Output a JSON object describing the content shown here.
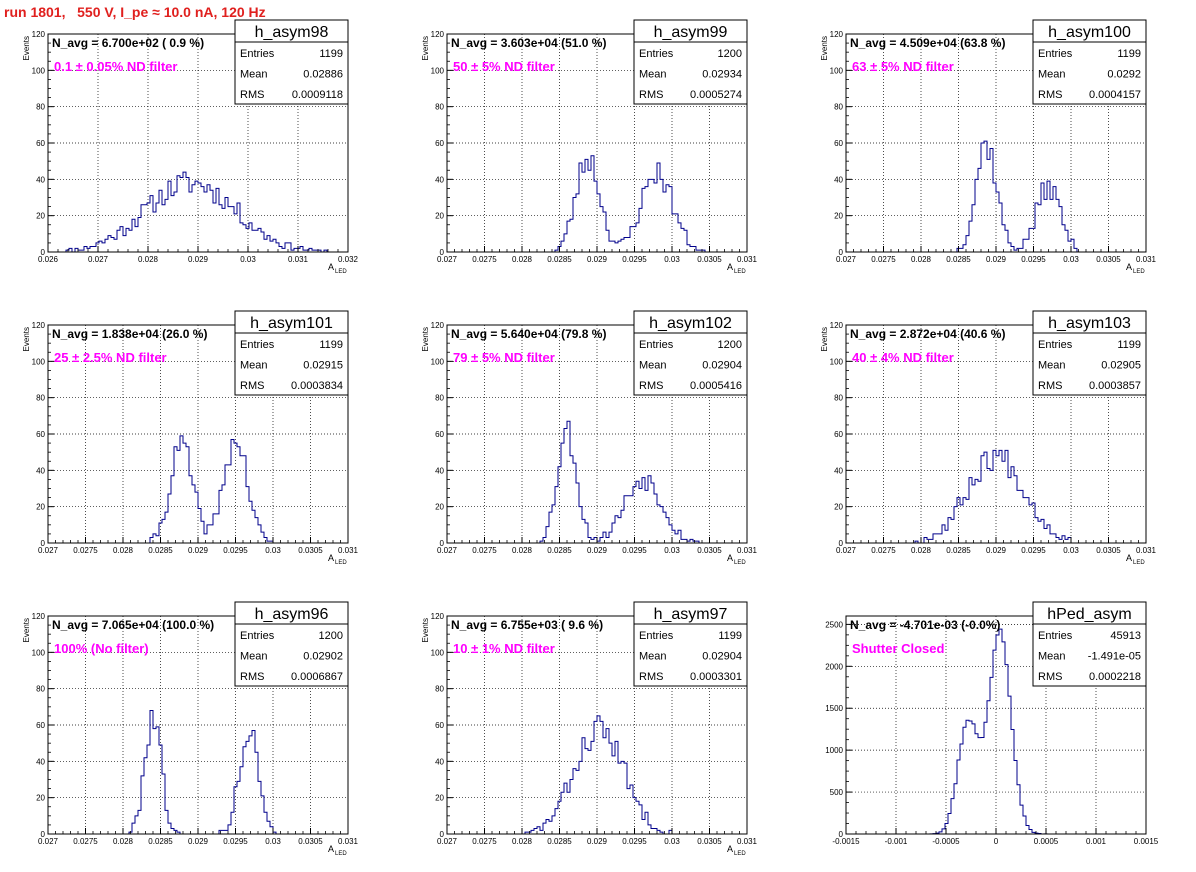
{
  "header": {
    "title": "run 1801,   550 V, I_pe ≈ 10.0 nA, 120 Hz"
  },
  "colors": {
    "histogram": "#00008b",
    "title_text": "#e0201e",
    "annotation": "#ff00ff",
    "grid": "#000000"
  },
  "chart_data": [
    {
      "type": "bar",
      "name": "h_asym98",
      "navg": "N_avg = 6.700e+02 ( 0.9 %)",
      "filter": "0.1 ± 0.05% ND filter",
      "stats": [
        [
          "Entries",
          "1199"
        ],
        [
          "Mean",
          "0.02886"
        ],
        [
          "RMS",
          "0.0009118"
        ]
      ],
      "xlim": [
        0.026,
        0.032
      ],
      "ylim": [
        0,
        120
      ],
      "xticks": [
        0.026,
        0.027,
        0.028,
        0.029,
        0.03,
        0.031,
        0.032
      ],
      "xticklabels": [
        "0.026",
        "0.027",
        "0.028",
        "0.029",
        "0.03",
        "0.031",
        "0.032"
      ],
      "yticks": [
        0,
        20,
        40,
        60,
        80,
        100,
        120
      ],
      "yticklabels": [
        "0",
        "20",
        "40",
        "60",
        "80",
        "100",
        "120"
      ],
      "xlabel": "A",
      "xlabel_sub": "LED",
      "ylabel": "Events",
      "peaks": [
        {
          "mu": 0.02885,
          "sigma": 0.0009,
          "amp": 38
        }
      ],
      "seed": 11
    },
    {
      "type": "bar",
      "name": "h_asym99",
      "navg": "N_avg = 3.603e+04 (51.0 %)",
      "filter": "50 ± 5% ND filter",
      "stats": [
        [
          "Entries",
          "1200"
        ],
        [
          "Mean",
          "0.02934"
        ],
        [
          "RMS",
          "0.0005274"
        ]
      ],
      "xlim": [
        0.027,
        0.031
      ],
      "ylim": [
        0,
        120
      ],
      "xticks": [
        0.027,
        0.0275,
        0.028,
        0.0285,
        0.029,
        0.0295,
        0.03,
        0.0305,
        0.031
      ],
      "xticklabels": [
        "0.027",
        "0.0275",
        "0.028",
        "0.0285",
        "0.029",
        "0.0295",
        "0.03",
        "0.0305",
        "0.031"
      ],
      "yticks": [
        0,
        20,
        40,
        60,
        80,
        100,
        120
      ],
      "yticklabels": [
        "0",
        "20",
        "40",
        "60",
        "80",
        "100",
        "120"
      ],
      "xlabel": "A",
      "xlabel_sub": "LED",
      "ylabel": "Events",
      "peaks": [
        {
          "mu": 0.02888,
          "sigma": 0.00016,
          "amp": 52
        },
        {
          "mu": 0.0298,
          "sigma": 0.00021,
          "amp": 44
        }
      ],
      "seed": 23
    },
    {
      "type": "bar",
      "name": "h_asym100",
      "navg": "N_avg = 4.509e+04 (63.8 %)",
      "filter": "63 ± 5% ND filter",
      "stats": [
        [
          "Entries",
          "1199"
        ],
        [
          "Mean",
          "0.0292"
        ],
        [
          "RMS",
          "0.0004157"
        ]
      ],
      "xlim": [
        0.027,
        0.031
      ],
      "ylim": [
        0,
        120
      ],
      "xticks": [
        0.027,
        0.0275,
        0.028,
        0.0285,
        0.029,
        0.0295,
        0.03,
        0.0305,
        0.031
      ],
      "xticklabels": [
        "0.027",
        "0.0275",
        "0.028",
        "0.0285",
        "0.029",
        "0.0295",
        "0.03",
        "0.0305",
        "0.031"
      ],
      "yticks": [
        0,
        20,
        40,
        60,
        80,
        100,
        120
      ],
      "yticklabels": [
        "0",
        "20",
        "40",
        "60",
        "80",
        "100",
        "120"
      ],
      "xlabel": "A",
      "xlabel_sub": "LED",
      "ylabel": "Events",
      "peaks": [
        {
          "mu": 0.02887,
          "sigma": 0.00014,
          "amp": 60
        },
        {
          "mu": 0.0297,
          "sigma": 0.00016,
          "amp": 36
        }
      ],
      "seed": 37
    },
    {
      "type": "bar",
      "name": "h_asym101",
      "navg": "N_avg = 1.838e+04 (26.0 %)",
      "filter": "25 ± 2.5% ND filter",
      "stats": [
        [
          "Entries",
          "1199"
        ],
        [
          "Mean",
          "0.02915"
        ],
        [
          "RMS",
          "0.0003834"
        ]
      ],
      "xlim": [
        0.027,
        0.031
      ],
      "ylim": [
        0,
        120
      ],
      "xticks": [
        0.027,
        0.0275,
        0.028,
        0.0285,
        0.029,
        0.0295,
        0.03,
        0.0305,
        0.031
      ],
      "xticklabels": [
        "0.027",
        "0.0275",
        "0.028",
        "0.0285",
        "0.029",
        "0.0295",
        "0.03",
        "0.0305",
        "0.031"
      ],
      "yticks": [
        0,
        20,
        40,
        60,
        80,
        100,
        120
      ],
      "yticklabels": [
        "0",
        "20",
        "40",
        "60",
        "80",
        "100",
        "120"
      ],
      "xlabel": "A",
      "xlabel_sub": "LED",
      "ylabel": "Events",
      "peaks": [
        {
          "mu": 0.02878,
          "sigma": 0.00015,
          "amp": 54
        },
        {
          "mu": 0.0295,
          "sigma": 0.00016,
          "amp": 56
        }
      ],
      "seed": 41
    },
    {
      "type": "bar",
      "name": "h_asym102",
      "navg": "N_avg = 5.640e+04 (79.8 %)",
      "filter": "79 ± 5% ND filter",
      "stats": [
        [
          "Entries",
          "1200"
        ],
        [
          "Mean",
          "0.02904"
        ],
        [
          "RMS",
          "0.0005416"
        ]
      ],
      "xlim": [
        0.027,
        0.031
      ],
      "ylim": [
        0,
        120
      ],
      "xticks": [
        0.027,
        0.0275,
        0.028,
        0.0285,
        0.029,
        0.0295,
        0.03,
        0.0305,
        0.031
      ],
      "xticklabels": [
        "0.027",
        "0.0275",
        "0.028",
        "0.0285",
        "0.029",
        "0.0295",
        "0.03",
        "0.0305",
        "0.031"
      ],
      "yticks": [
        0,
        20,
        40,
        60,
        80,
        100,
        120
      ],
      "yticklabels": [
        "0",
        "20",
        "40",
        "60",
        "80",
        "100",
        "120"
      ],
      "xlabel": "A",
      "xlabel_sub": "LED",
      "ylabel": "Events",
      "peaks": [
        {
          "mu": 0.0286,
          "sigma": 0.00013,
          "amp": 62
        },
        {
          "mu": 0.02962,
          "sigma": 0.00025,
          "amp": 36
        }
      ],
      "seed": 53
    },
    {
      "type": "bar",
      "name": "h_asym103",
      "navg": "N_avg = 2.872e+04 (40.6 %)",
      "filter": "40 ± 4% ND filter",
      "stats": [
        [
          "Entries",
          "1199"
        ],
        [
          "Mean",
          "0.02905"
        ],
        [
          "RMS",
          "0.0003857"
        ]
      ],
      "xlim": [
        0.027,
        0.031
      ],
      "ylim": [
        0,
        120
      ],
      "xticks": [
        0.027,
        0.0275,
        0.028,
        0.0285,
        0.029,
        0.0295,
        0.03,
        0.0305,
        0.031
      ],
      "xticklabels": [
        "0.027",
        "0.0275",
        "0.028",
        "0.0285",
        "0.029",
        "0.0295",
        "0.03",
        "0.0305",
        "0.031"
      ],
      "yticks": [
        0,
        20,
        40,
        60,
        80,
        100,
        120
      ],
      "yticklabels": [
        "0",
        "20",
        "40",
        "60",
        "80",
        "100",
        "120"
      ],
      "xlabel": "A",
      "xlabel_sub": "LED",
      "ylabel": "Events",
      "peaks": [
        {
          "mu": 0.029,
          "sigma": 0.00038,
          "amp": 48
        }
      ],
      "seed": 67
    },
    {
      "type": "bar",
      "name": "h_asym96",
      "navg": "N_avg = 7.065e+04 (100.0 %)",
      "filter": "100% (No filter)",
      "stats": [
        [
          "Entries",
          "1200"
        ],
        [
          "Mean",
          "0.02902"
        ],
        [
          "RMS",
          "0.0006867"
        ]
      ],
      "xlim": [
        0.027,
        0.031
      ],
      "ylim": [
        0,
        120
      ],
      "xticks": [
        0.027,
        0.0275,
        0.028,
        0.0285,
        0.029,
        0.0295,
        0.03,
        0.0305,
        0.031
      ],
      "xticklabels": [
        "0.027",
        "0.0275",
        "0.028",
        "0.0285",
        "0.029",
        "0.0295",
        "0.03",
        "0.0305",
        "0.031"
      ],
      "yticks": [
        0,
        20,
        40,
        60,
        80,
        100,
        120
      ],
      "yticklabels": [
        "0",
        "20",
        "40",
        "60",
        "80",
        "100",
        "120"
      ],
      "xlabel": "A",
      "xlabel_sub": "LED",
      "ylabel": "Events",
      "peaks": [
        {
          "mu": 0.0284,
          "sigma": 0.00011,
          "amp": 66
        },
        {
          "mu": 0.02968,
          "sigma": 0.00013,
          "amp": 56
        }
      ],
      "seed": 79
    },
    {
      "type": "bar",
      "name": "h_asym97",
      "navg": "N_avg = 6.755e+03 ( 9.6 %)",
      "filter": "10 ± 1% ND filter",
      "stats": [
        [
          "Entries",
          "1199"
        ],
        [
          "Mean",
          "0.02904"
        ],
        [
          "RMS",
          "0.0003301"
        ]
      ],
      "xlim": [
        0.027,
        0.031
      ],
      "ylim": [
        0,
        120
      ],
      "xticks": [
        0.027,
        0.0275,
        0.028,
        0.0285,
        0.029,
        0.0295,
        0.03,
        0.0305,
        0.031
      ],
      "xticklabels": [
        "0.027",
        "0.0275",
        "0.028",
        "0.0285",
        "0.029",
        "0.0295",
        "0.03",
        "0.0305",
        "0.031"
      ],
      "yticks": [
        0,
        20,
        40,
        60,
        80,
        100,
        120
      ],
      "yticklabels": [
        "0",
        "20",
        "40",
        "60",
        "80",
        "100",
        "120"
      ],
      "xlabel": "A",
      "xlabel_sub": "LED",
      "ylabel": "Events",
      "peaks": [
        {
          "mu": 0.02903,
          "sigma": 0.00033,
          "amp": 58
        }
      ],
      "seed": 83
    },
    {
      "type": "bar",
      "name": "hPed_asym",
      "navg": "N_avg = -4.701e-03 (-0.0%)",
      "filter": "Shutter Closed",
      "stats": [
        [
          "Entries",
          "45913"
        ],
        [
          "Mean",
          "-1.491e-05"
        ],
        [
          "RMS",
          "0.0002218"
        ]
      ],
      "xlim": [
        -0.0015,
        0.0015
      ],
      "ylim": [
        0,
        2600
      ],
      "xticks": [
        -0.0015,
        -0.001,
        -0.0005,
        0,
        0.0005,
        0.001,
        0.0015
      ],
      "xticklabels": [
        "-0.0015",
        "-0.001",
        "-0.0005",
        "0",
        "0.0005",
        "0.001",
        "0.0015"
      ],
      "yticks": [
        0,
        500,
        1000,
        1500,
        2000,
        2500
      ],
      "yticklabels": [
        "0",
        "500",
        "1000",
        "1500",
        "2000",
        "2500"
      ],
      "xlabel": "",
      "xlabel_sub": "",
      "ylabel": "",
      "peaks": [
        {
          "mu": -0.00028,
          "sigma": 0.0001,
          "amp": 1350
        },
        {
          "mu": 4e-05,
          "sigma": 0.00011,
          "amp": 2450
        }
      ],
      "seed": 97
    }
  ]
}
